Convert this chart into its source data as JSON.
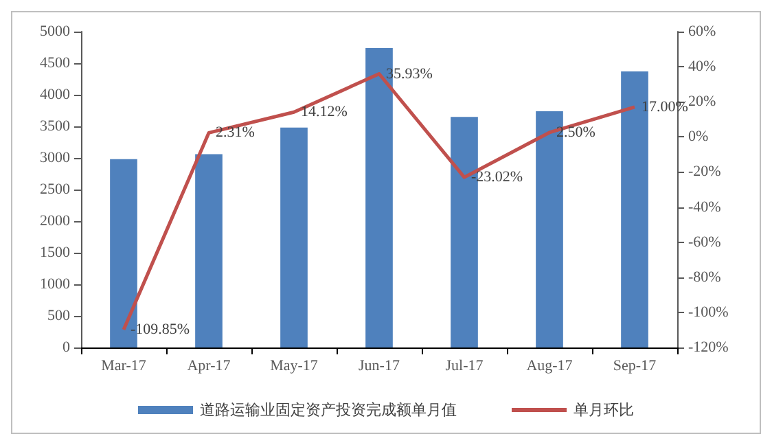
{
  "chart_data": {
    "type": "bar",
    "categories": [
      "Mar-17",
      "Apr-17",
      "May-17",
      "Jun-17",
      "Jul-17",
      "Aug-17",
      "Sep-17"
    ],
    "series": [
      {
        "name": "道路运输业固定资产投资完成额单月值",
        "color": "#4f81bd",
        "values": [
          2980,
          3060,
          3480,
          4740,
          3650,
          3740,
          4370
        ]
      },
      {
        "name": "单月环比",
        "type": "line",
        "axis": "y2",
        "color": "#c0504d",
        "values": [
          -109.85,
          2.31,
          14.12,
          35.93,
          -23.02,
          2.5,
          17.0
        ],
        "value_labels": [
          "-109.85%",
          "2.31%",
          "14.12%",
          "35.93%",
          "-23.02%",
          "2.50%",
          "17.00%"
        ]
      }
    ],
    "ylim": [
      0,
      5000
    ],
    "yticks": [
      0,
      500,
      1000,
      1500,
      2000,
      2500,
      3000,
      3500,
      4000,
      4500,
      5000
    ],
    "y2lim": [
      -120,
      60
    ],
    "y2ticks": [
      {
        "value": -120,
        "label": "-120%"
      },
      {
        "value": -100,
        "label": "-100%"
      },
      {
        "value": -80,
        "label": "-80%"
      },
      {
        "value": -60,
        "label": "-60%"
      },
      {
        "value": -40,
        "label": "-40%"
      },
      {
        "value": -20,
        "label": "-20%"
      },
      {
        "value": 0,
        "label": "0%"
      },
      {
        "value": 20,
        "label": "20%"
      },
      {
        "value": 40,
        "label": "40%"
      },
      {
        "value": 60,
        "label": "60%"
      }
    ],
    "grid": false,
    "legend": "bottom",
    "marker": "none",
    "line_style": "solid"
  }
}
